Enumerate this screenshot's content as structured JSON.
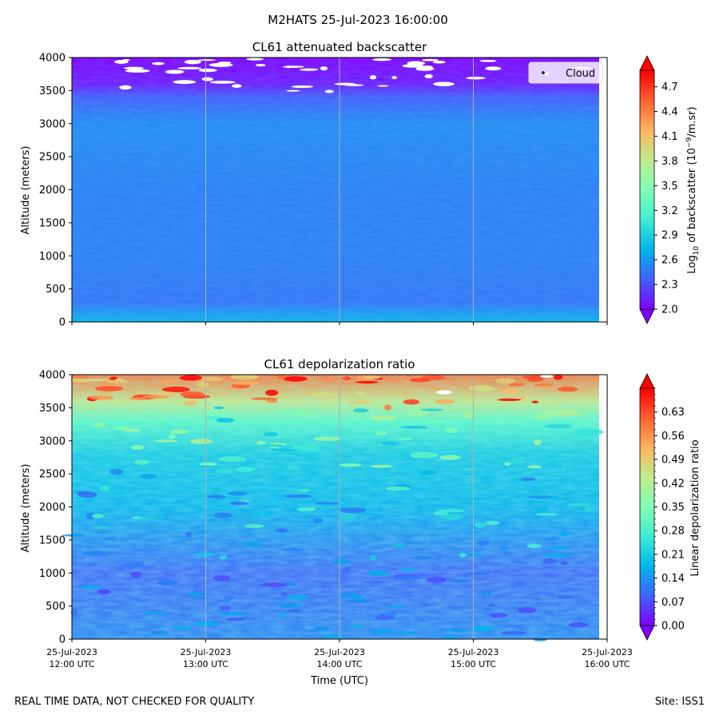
{
  "figure": {
    "title": "M2HATS 25-Jul-2023 16:00:00",
    "footer_left": "REAL TIME DATA, NOT CHECKED FOR QUALITY",
    "footer_right": "Site: ISS1"
  },
  "chart_data": [
    {
      "type": "heatmap",
      "title": "CL61 attenuated backscatter",
      "xlabel": "",
      "ylabel": "Altitude (meters)",
      "ylim": [
        0,
        4000
      ],
      "yticks": [
        0,
        500,
        1000,
        1500,
        2000,
        2500,
        3000,
        3500,
        4000
      ],
      "xticks": [
        "12:00",
        "13:00",
        "14:00",
        "15:00",
        "16:00"
      ],
      "xtick_labels": [],
      "grid": "vertical",
      "colormap": "rainbow",
      "colorbar": {
        "label_prefix": "Log",
        "label_sub": "10",
        "label_mid": " of backscatter (10",
        "label_sup": "−9",
        "label_suffix": "/m.sr)",
        "range": [
          2.0,
          4.9
        ],
        "ticks": [
          "2.0",
          "2.3",
          "2.6",
          "2.9",
          "3.2",
          "3.5",
          "3.8",
          "4.1",
          "4.4",
          "4.7"
        ],
        "extend": "both"
      },
      "legend": {
        "placement": "top-right",
        "entries": [
          "Cloud"
        ]
      },
      "profile": {
        "description_levels": [
          {
            "altitude": 0,
            "value": 2.75
          },
          {
            "altitude": 300,
            "value": 2.45
          },
          {
            "altitude": 1000,
            "value": 2.5
          },
          {
            "altitude": 2000,
            "value": 2.5
          },
          {
            "altitude": 3000,
            "value": 2.55
          },
          {
            "altitude": 3400,
            "value": 2.35
          },
          {
            "altitude": 3600,
            "value": 2.1
          },
          {
            "altitude": 4000,
            "value": 2.0
          }
        ]
      }
    },
    {
      "type": "heatmap",
      "title": "CL61 depolarization ratio",
      "xlabel": "Time (UTC)",
      "ylabel": "Altitude (meters)",
      "ylim": [
        0,
        4000
      ],
      "yticks": [
        0,
        500,
        1000,
        1500,
        2000,
        2500,
        3000,
        3500,
        4000
      ],
      "xticks": [
        "12:00",
        "13:00",
        "14:00",
        "15:00",
        "16:00"
      ],
      "xtick_labels": [
        {
          "date": "25-Jul-2023",
          "time": "12:00 UTC"
        },
        {
          "date": "25-Jul-2023",
          "time": "13:00 UTC"
        },
        {
          "date": "25-Jul-2023",
          "time": "14:00 UTC"
        },
        {
          "date": "25-Jul-2023",
          "time": "15:00 UTC"
        },
        {
          "date": "25-Jul-2023",
          "time": "16:00 UTC"
        }
      ],
      "grid": "vertical",
      "colormap": "rainbow",
      "colorbar": {
        "label": "Linear depolarization ratio",
        "range": [
          0.0,
          0.7
        ],
        "ticks": [
          "0.00",
          "0.07",
          "0.14",
          "0.21",
          "0.28",
          "0.35",
          "0.42",
          "0.49",
          "0.56",
          "0.63"
        ],
        "extend": "both"
      },
      "profile": {
        "description_levels": [
          {
            "altitude": 0,
            "value": 0.12
          },
          {
            "altitude": 1000,
            "value": 0.09
          },
          {
            "altitude": 2000,
            "value": 0.17
          },
          {
            "altitude": 2800,
            "value": 0.2
          },
          {
            "altitude": 3300,
            "value": 0.3
          },
          {
            "altitude": 3600,
            "value": 0.45
          },
          {
            "altitude": 4000,
            "value": 0.6
          }
        ]
      }
    }
  ]
}
